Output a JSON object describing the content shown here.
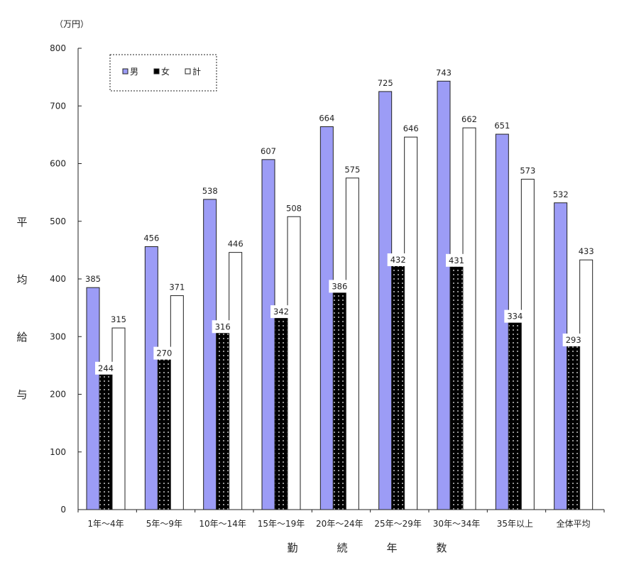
{
  "chart_data": {
    "type": "bar",
    "unit": "（万円）",
    "ylabel": "平均給与",
    "xlabel": "勤続年数",
    "ylim": [
      0,
      800
    ],
    "yticks": [
      0,
      100,
      200,
      300,
      400,
      500,
      600,
      700,
      800
    ],
    "categories": [
      "1年～4年",
      "5年～9年",
      "10年～14年",
      "15年～19年",
      "20年～24年",
      "25年～29年",
      "30年～34年",
      "35年以上",
      "全体平均"
    ],
    "series": [
      {
        "name": "男",
        "values": [
          385,
          456,
          538,
          607,
          664,
          725,
          743,
          651,
          532
        ],
        "color": "#9c9cf6",
        "pattern": "solid"
      },
      {
        "name": "女",
        "values": [
          244,
          270,
          316,
          342,
          386,
          432,
          431,
          334,
          293
        ],
        "color": "#000000",
        "pattern": "dots"
      },
      {
        "name": "計",
        "values": [
          315,
          371,
          446,
          508,
          575,
          646,
          662,
          573,
          433
        ],
        "color": "#ffffff",
        "pattern": "solid"
      }
    ],
    "legend_position": "top-left",
    "grid": false
  }
}
